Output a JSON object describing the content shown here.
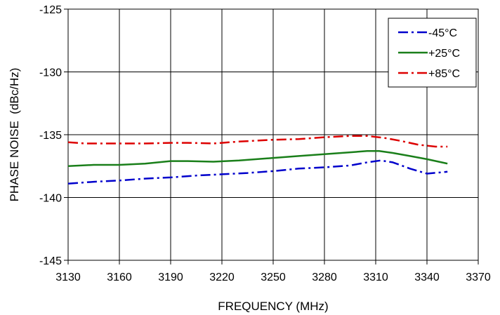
{
  "chart_data": {
    "type": "line",
    "title": "",
    "xlabel": "FREQUENCY (MHz)",
    "ylabel": "PHASE NOISE  (dBc/Hz)",
    "xlim": [
      3130,
      3370
    ],
    "ylim": [
      -145,
      -125
    ],
    "xticks": [
      3130,
      3160,
      3190,
      3220,
      3250,
      3280,
      3310,
      3340,
      3370
    ],
    "yticks": [
      -145,
      -140,
      -135,
      -130,
      -125
    ],
    "grid": true,
    "legend_position": "top-right",
    "series": [
      {
        "name": "-45°C",
        "color": "#0000cc",
        "dash": "dash-dot",
        "x": [
          3130,
          3145,
          3160,
          3175,
          3190,
          3205,
          3220,
          3235,
          3250,
          3265,
          3280,
          3295,
          3305,
          3313,
          3320,
          3330,
          3340,
          3352
        ],
        "y": [
          -138.9,
          -138.75,
          -138.65,
          -138.5,
          -138.4,
          -138.25,
          -138.15,
          -138.05,
          -137.9,
          -137.7,
          -137.6,
          -137.45,
          -137.2,
          -137.05,
          -137.2,
          -137.7,
          -138.1,
          -137.95
        ]
      },
      {
        "name": "+25°C",
        "color": "#1a7f1a",
        "dash": "solid",
        "x": [
          3130,
          3145,
          3160,
          3175,
          3190,
          3200,
          3215,
          3230,
          3250,
          3265,
          3280,
          3295,
          3305,
          3312,
          3320,
          3330,
          3340,
          3352
        ],
        "y": [
          -137.5,
          -137.4,
          -137.4,
          -137.3,
          -137.1,
          -137.1,
          -137.15,
          -137.05,
          -136.85,
          -136.7,
          -136.55,
          -136.4,
          -136.3,
          -136.3,
          -136.45,
          -136.7,
          -136.95,
          -137.3
        ]
      },
      {
        "name": "+85°C",
        "color": "#dd0000",
        "dash": "dash-dot",
        "x": [
          3130,
          3140,
          3160,
          3175,
          3190,
          3200,
          3215,
          3230,
          3250,
          3265,
          3280,
          3295,
          3305,
          3315,
          3325,
          3335,
          3345,
          3352
        ],
        "y": [
          -135.6,
          -135.7,
          -135.7,
          -135.7,
          -135.65,
          -135.65,
          -135.7,
          -135.55,
          -135.4,
          -135.35,
          -135.2,
          -135.1,
          -135.1,
          -135.25,
          -135.5,
          -135.8,
          -135.95,
          -135.95
        ]
      }
    ]
  }
}
